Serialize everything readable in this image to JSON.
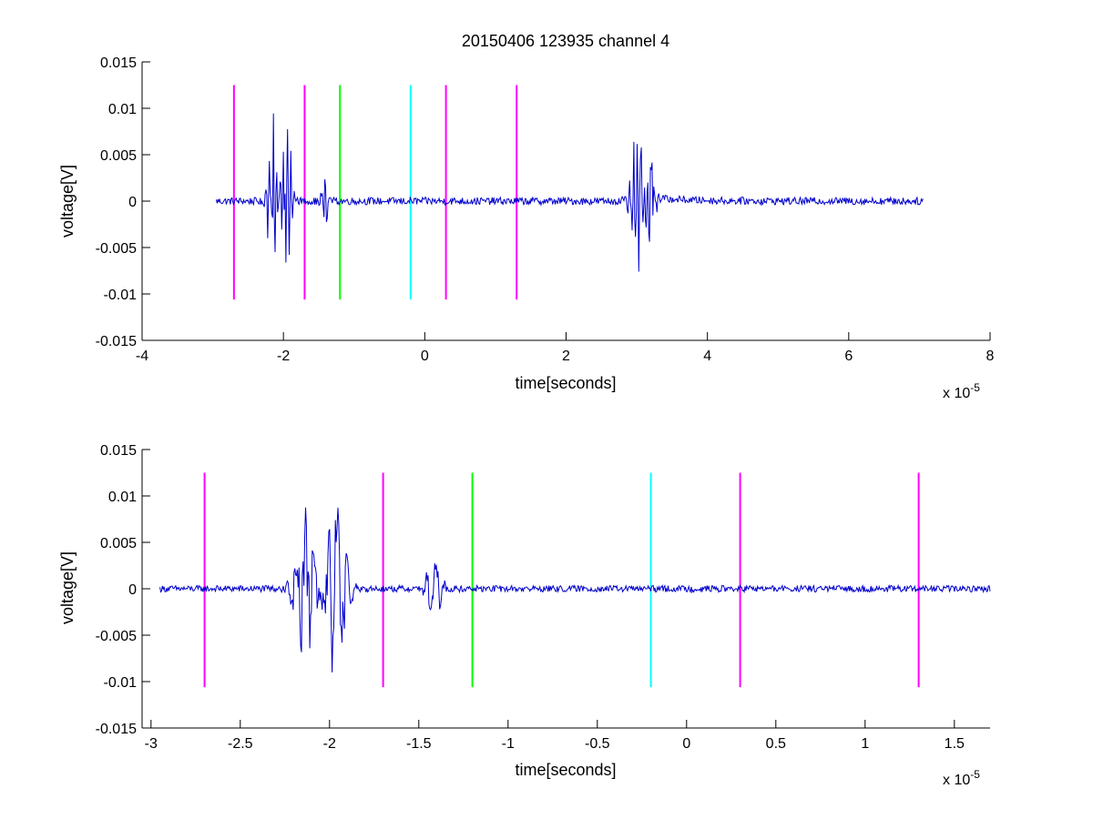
{
  "chart_data": [
    {
      "type": "line",
      "title": "20150406 123935 channel 4",
      "xlabel": "time[seconds]",
      "ylabel": "voltage[V]",
      "x_exponent_label": "x 10",
      "x_exponent": "-5",
      "xlim": [
        -4,
        8
      ],
      "ylim": [
        -0.015,
        0.015
      ],
      "x_scale": 1e-05,
      "x_ticks": [
        -4,
        -2,
        0,
        2,
        4,
        6,
        8
      ],
      "x_tick_labels": [
        "-4",
        "-2",
        "0",
        "2",
        "4",
        "6",
        "8"
      ],
      "y_ticks": [
        -0.015,
        -0.01,
        -0.005,
        0,
        0.005,
        0.01,
        0.015
      ],
      "y_tick_labels": [
        "-0.015",
        "-0.01",
        "-0.005",
        "0",
        "0.005",
        "0.01",
        "0.015"
      ],
      "grid": false,
      "markers": [
        {
          "x": -2.7,
          "color": "#ff00ff"
        },
        {
          "x": -1.7,
          "color": "#ff00ff"
        },
        {
          "x": -1.2,
          "color": "#00ff00"
        },
        {
          "x": -0.2,
          "color": "#00ffff"
        },
        {
          "x": 0.3,
          "color": "#ff00ff"
        },
        {
          "x": 1.3,
          "color": "#ff00ff"
        }
      ],
      "marker_range": [
        -0.0106,
        0.0125
      ],
      "series": [
        {
          "color": "#0000cc",
          "x_range": [
            -2.95,
            7.05
          ],
          "noise": 0.0004,
          "bursts": [
            {
              "x": -2.15,
              "amp": 0.0095,
              "width": 0.12
            },
            {
              "x": -1.95,
              "amp": 0.0115,
              "width": 0.1
            },
            {
              "x": -1.42,
              "amp": 0.004,
              "width": 0.08
            },
            {
              "x": 3.0,
              "amp": 0.0094,
              "width": 0.14
            },
            {
              "x": 3.2,
              "amp": 0.0068,
              "width": 0.1
            }
          ],
          "offset_steps": [
            {
              "from": 3.3,
              "value": 0.0003
            }
          ]
        }
      ]
    },
    {
      "type": "line",
      "title": "",
      "xlabel": "time[seconds]",
      "ylabel": "voltage[V]",
      "x_exponent_label": "x 10",
      "x_exponent": "-5",
      "xlim": [
        -3.05,
        1.7
      ],
      "ylim": [
        -0.015,
        0.015
      ],
      "x_scale": 1e-05,
      "x_ticks": [
        -3,
        -2.5,
        -2,
        -1.5,
        -1,
        -0.5,
        0,
        0.5,
        1,
        1.5
      ],
      "x_tick_labels": [
        "-3",
        "-2.5",
        "-2",
        "-1.5",
        "-1",
        "-0.5",
        "0",
        "0.5",
        "1",
        "1.5"
      ],
      "y_ticks": [
        -0.015,
        -0.01,
        -0.005,
        0,
        0.005,
        0.01,
        0.015
      ],
      "y_tick_labels": [
        "-0.015",
        "-0.01",
        "-0.005",
        "0",
        "0.005",
        "0.01",
        "0.015"
      ],
      "grid": false,
      "markers": [
        {
          "x": -2.7,
          "color": "#ff00ff"
        },
        {
          "x": -1.7,
          "color": "#ff00ff"
        },
        {
          "x": -1.2,
          "color": "#00ff00"
        },
        {
          "x": -0.2,
          "color": "#00ffff"
        },
        {
          "x": 0.3,
          "color": "#ff00ff"
        },
        {
          "x": 1.3,
          "color": "#ff00ff"
        }
      ],
      "marker_range": [
        -0.0106,
        0.0125
      ],
      "series": [
        {
          "color": "#0000cc",
          "x_range": [
            -2.95,
            1.7
          ],
          "noise": 0.00035,
          "bursts": [
            {
              "x": -2.14,
              "amp": 0.0097,
              "width": 0.1
            },
            {
              "x": -1.96,
              "amp": 0.0115,
              "width": 0.09
            },
            {
              "x": -1.41,
              "amp": 0.0042,
              "width": 0.07
            }
          ],
          "offset_steps": []
        }
      ]
    }
  ]
}
